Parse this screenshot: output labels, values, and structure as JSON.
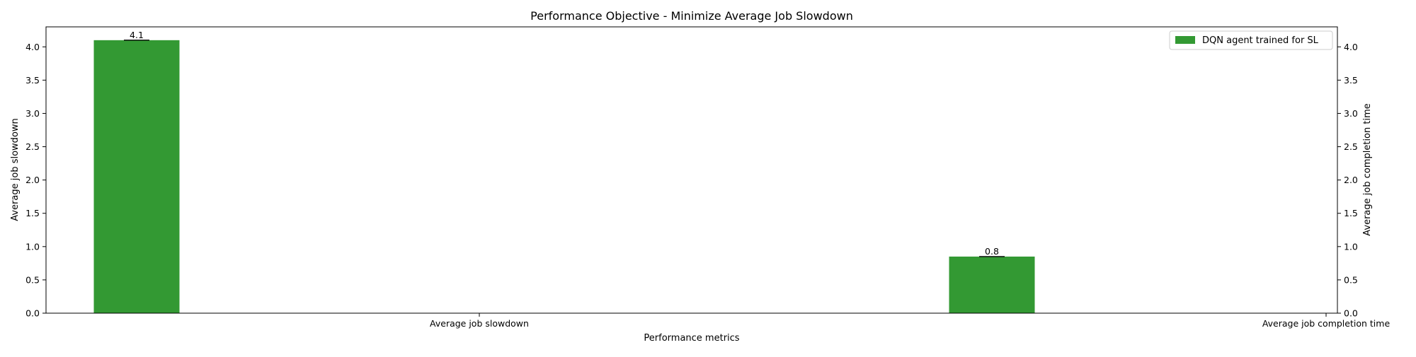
{
  "chart_data": {
    "type": "bar",
    "title": "Performance Objective - Minimize Average Job Slowdown",
    "xlabel": "Performance metrics",
    "ylabel": "Average job slowdown",
    "ylabel_right": "Average job completion time",
    "categories": [
      "Average job slowdown",
      "Average job completion time"
    ],
    "ylim": [
      0,
      4.3
    ],
    "yticks": [
      "0.0",
      "0.5",
      "1.0",
      "1.5",
      "2.0",
      "2.5",
      "3.0",
      "3.5",
      "4.0"
    ],
    "grid": false,
    "legend_position": "top-right",
    "series": [
      {
        "name": "DQN agent trained for SL",
        "color": "#339933",
        "values": [
          4.1,
          0.85
        ],
        "error": [
          0.0,
          0.0
        ],
        "labels": [
          "4.1",
          "0.8"
        ]
      }
    ]
  }
}
